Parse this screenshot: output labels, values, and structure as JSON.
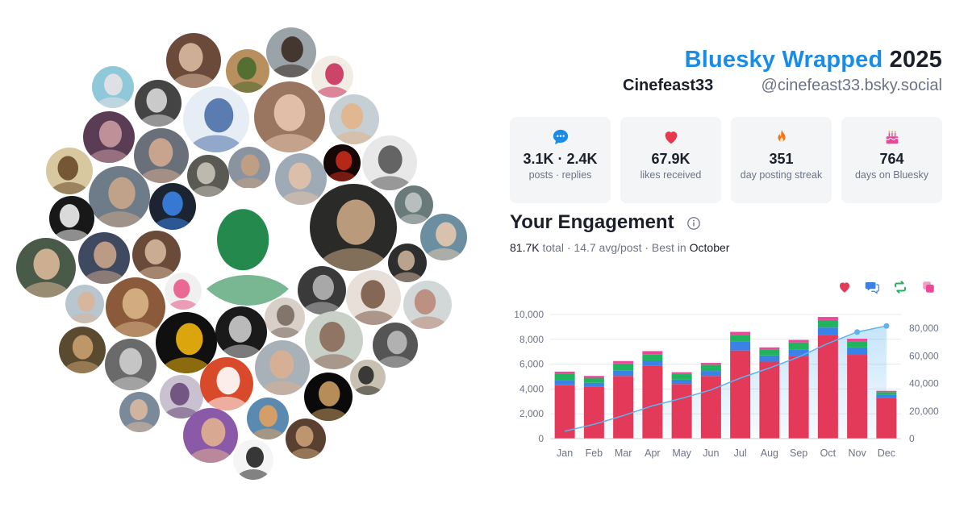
{
  "header": {
    "brand": "Bluesky Wrapped",
    "year": "2025",
    "display_name": "Cinefeast33",
    "handle": "@cinefeast33.bsky.social"
  },
  "stats": [
    {
      "icon": "speech-bubble-icon",
      "color": "#1a8ce6",
      "value": "3.1K · 2.4K",
      "label": "posts · replies"
    },
    {
      "icon": "heart-icon",
      "color": "#e8384f",
      "value": "67.9K",
      "label": "likes received"
    },
    {
      "icon": "flame-icon",
      "color": "#f97316",
      "value": "351",
      "label": "day posting streak"
    },
    {
      "icon": "cake-icon",
      "color": "#ec4899",
      "value": "764",
      "label": "days on Bluesky"
    }
  ],
  "engagement": {
    "title": "Your Engagement",
    "total": "81.7K",
    "total_label": "total",
    "avg": "14.7 avg/post",
    "best_label": "Best in",
    "best_month": "October",
    "legend_icons": [
      "heart-icon",
      "reply-icon",
      "repost-icon",
      "quote-icon"
    ]
  },
  "chart_data": {
    "type": "bar",
    "stacked": true,
    "categories": [
      "Jan",
      "Feb",
      "Mar",
      "Apr",
      "May",
      "Jun",
      "Jul",
      "Aug",
      "Sep",
      "Oct",
      "Nov",
      "Dec"
    ],
    "series": [
      {
        "color": "#e33a5a",
        "values": [
          4300,
          4200,
          5050,
          5850,
          4400,
          5050,
          7100,
          6200,
          6650,
          8350,
          6750,
          3300
        ]
      },
      {
        "color": "#3b82e6",
        "values": [
          400,
          300,
          450,
          450,
          350,
          400,
          700,
          500,
          500,
          600,
          600,
          250
        ]
      },
      {
        "color": "#22b35e",
        "values": [
          500,
          400,
          550,
          500,
          450,
          500,
          550,
          500,
          600,
          600,
          500,
          200
        ]
      },
      {
        "color": "#ec4899",
        "values": [
          200,
          150,
          200,
          250,
          150,
          150,
          250,
          150,
          200,
          250,
          200,
          100
        ]
      }
    ],
    "cumulative": {
      "color": "#5ab4f0",
      "values": [
        5400,
        10400,
        16700,
        23800,
        29200,
        35300,
        43900,
        51200,
        59200,
        69000,
        77300,
        81700
      ]
    },
    "y_left": {
      "min": 0,
      "max": 10000,
      "ticks": [
        "0",
        "2,000",
        "4,000",
        "6,000",
        "8,000",
        "10,000"
      ]
    },
    "y_right": {
      "min": 0,
      "max": 90000,
      "ticks": [
        "0",
        "20,000",
        "40,000",
        "60,000",
        "80,000"
      ]
    },
    "grid": true
  },
  "avatars": [
    {
      "name": "avatar",
      "bg": "#6b4a3a",
      "fg": "#d9b9a0"
    },
    {
      "name": "avatar",
      "bg": "#9aa3a8",
      "fg": "#3b2b22"
    },
    {
      "name": "avatar",
      "bg": "#b88f5f",
      "fg": "#4a6a2c"
    },
    {
      "name": "avatar",
      "bg": "#f1ece4",
      "fg": "#c8325a"
    },
    {
      "name": "avatar",
      "bg": "#8fc8d8",
      "fg": "#e8e2e8"
    },
    {
      "name": "avatar",
      "bg": "#444444",
      "fg": "#d9d9d9"
    },
    {
      "name": "avatar",
      "bg": "#e6edf4",
      "fg": "#4a6fa8"
    },
    {
      "name": "avatar",
      "bg": "#9a7560",
      "fg": "#e8c7b0"
    },
    {
      "name": "avatar",
      "bg": "#c5cfd4",
      "fg": "#e2b48a"
    },
    {
      "name": "avatar",
      "bg": "#5a3d55",
      "fg": "#c99aa0"
    },
    {
      "name": "avatar",
      "bg": "#6a7079",
      "fg": "#d3aa90"
    },
    {
      "name": "avatar",
      "bg": "#5a5a55",
      "fg": "#c9c3b8"
    },
    {
      "name": "avatar",
      "bg": "#8a94a0",
      "fg": "#c4a07f"
    },
    {
      "name": "avatar",
      "bg": "#9eaab5",
      "fg": "#e2c1a8"
    },
    {
      "name": "avatar",
      "bg": "#170808",
      "fg": "#c72b1b"
    },
    {
      "name": "avatar",
      "bg": "#e8e8e8",
      "fg": "#555555"
    },
    {
      "name": "avatar",
      "bg": "#d8c8a0",
      "fg": "#6a4a2a"
    },
    {
      "name": "avatar",
      "bg": "#6e7b88",
      "fg": "#c8a68a"
    },
    {
      "name": "avatar",
      "bg": "#1b2430",
      "fg": "#3b82e6"
    },
    {
      "name": "avatar",
      "bg": "#ffffff",
      "fg": "#0b7c3a"
    },
    {
      "name": "avatar",
      "bg": "#2a2a28",
      "fg": "#c9a784"
    },
    {
      "name": "avatar",
      "bg": "#6a7a7a",
      "fg": "#bfc5c5"
    },
    {
      "name": "avatar",
      "bg": "#181818",
      "fg": "#f0f0f0"
    },
    {
      "name": "avatar",
      "bg": "#3f4a60",
      "fg": "#c9a48a"
    },
    {
      "name": "avatar",
      "bg": "#6a4b3a",
      "fg": "#d4b79c"
    },
    {
      "name": "avatar",
      "bg": "#6b8ea0",
      "fg": "#e4c6ae"
    },
    {
      "name": "avatar",
      "bg": "#4a5a48",
      "fg": "#d9b898"
    },
    {
      "name": "avatar",
      "bg": "#2e2e2e",
      "fg": "#c9b09a"
    },
    {
      "name": "avatar",
      "bg": "#b8c6d0",
      "fg": "#d9b496"
    },
    {
      "name": "avatar",
      "bg": "#8a5a3a",
      "fg": "#d9b48a"
    },
    {
      "name": "avatar",
      "bg": "#f0f0f0",
      "fg": "#e85a8a"
    },
    {
      "name": "avatar",
      "bg": "#3a3a3a",
      "fg": "#b5b5b5"
    },
    {
      "name": "avatar",
      "bg": "#e8e0d8",
      "fg": "#7a5a48"
    },
    {
      "name": "avatar",
      "bg": "#d2d8d8",
      "fg": "#b98a78"
    },
    {
      "name": "avatar",
      "bg": "#d7cfc8",
      "fg": "#7a6a60"
    },
    {
      "name": "avatar",
      "bg": "#1a1a1a",
      "fg": "#cccccc"
    },
    {
      "name": "avatar",
      "bg": "#101010",
      "fg": "#f2b70d"
    },
    {
      "name": "avatar",
      "bg": "#5a4a30",
      "fg": "#c9a070"
    },
    {
      "name": "avatar",
      "bg": "#c9d0c8",
      "fg": "#8a6a5a"
    },
    {
      "name": "avatar",
      "bg": "#555555",
      "fg": "#bbbbbb"
    },
    {
      "name": "avatar",
      "bg": "#6a6a6a",
      "fg": "#cfcfcf"
    },
    {
      "name": "avatar",
      "bg": "#c9c0d0",
      "fg": "#6a4a7a"
    },
    {
      "name": "avatar",
      "bg": "#d84a2a",
      "fg": "#ffffff"
    },
    {
      "name": "avatar",
      "bg": "#a8b0b8",
      "fg": "#d9b090"
    },
    {
      "name": "avatar",
      "bg": "#c8c0b0",
      "fg": "#2a2a2a"
    },
    {
      "name": "avatar",
      "bg": "#0a0a0a",
      "fg": "#c99a60"
    },
    {
      "name": "avatar",
      "bg": "#7a8a9a",
      "fg": "#d9b8a0"
    },
    {
      "name": "avatar",
      "bg": "#8a5aa8",
      "fg": "#e0b090"
    },
    {
      "name": "avatar",
      "bg": "#5a8ab0",
      "fg": "#e0a060"
    },
    {
      "name": "avatar",
      "bg": "#5a4030",
      "fg": "#c8a078"
    },
    {
      "name": "avatar",
      "bg": "#f5f5f5",
      "fg": "#222222"
    },
    {
      "name": "avatar",
      "bg": "#4a90b8",
      "fg": "#2a2a2a"
    },
    {
      "name": "avatar",
      "bg": "#a0b0c0",
      "fg": "#5a4a6a"
    },
    {
      "name": "avatar",
      "bg": "#8a7a68",
      "fg": "#c8a880"
    }
  ]
}
